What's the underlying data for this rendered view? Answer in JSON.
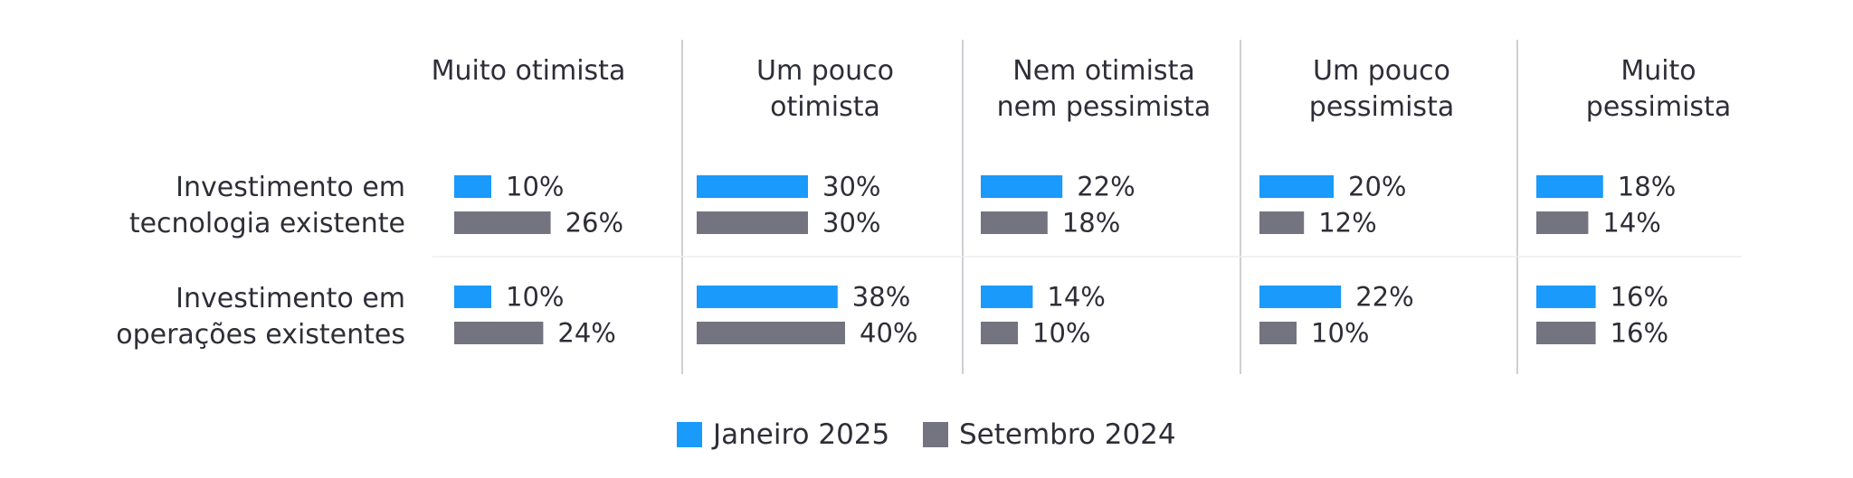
{
  "chart_data": {
    "type": "bar",
    "orientation": "horizontal",
    "title": "",
    "xlabel": "",
    "ylabel": "",
    "unit": "%",
    "colors": {
      "Janeiro 2025": "#1a9afa",
      "Setembro 2024": "#747480"
    },
    "categories": [
      "Muito otimista",
      "Um pouco otimista",
      "Nem otimista nem pessimista",
      "Um pouco pessimista",
      "Muito pessimista"
    ],
    "header_lines": [
      [
        "Muito otimista"
      ],
      [
        "Um pouco",
        "otimista"
      ],
      [
        "Nem otimista",
        "nem pessimista"
      ],
      [
        "Um pouco",
        "pessimista"
      ],
      [
        "Muito",
        "pessimista"
      ]
    ],
    "rows": [
      {
        "label_lines": [
          "Investimento em",
          "tecnologia existente"
        ],
        "series": [
          {
            "name": "Janeiro 2025",
            "values": [
              10,
              30,
              22,
              20,
              18
            ]
          },
          {
            "name": "Setembro 2024",
            "values": [
              26,
              30,
              18,
              12,
              14
            ]
          }
        ]
      },
      {
        "label_lines": [
          "Investimento em",
          "operações existentes"
        ],
        "series": [
          {
            "name": "Janeiro 2025",
            "values": [
              10,
              38,
              14,
              22,
              16
            ]
          },
          {
            "name": "Setembro 2024",
            "values": [
              24,
              40,
              10,
              10,
              16
            ]
          }
        ]
      }
    ],
    "legend": {
      "position": "bottom",
      "items": [
        {
          "name": "Janeiro 2025",
          "color": "#1a9afa"
        },
        {
          "name": "Setembro 2024",
          "color": "#747480"
        }
      ]
    }
  }
}
